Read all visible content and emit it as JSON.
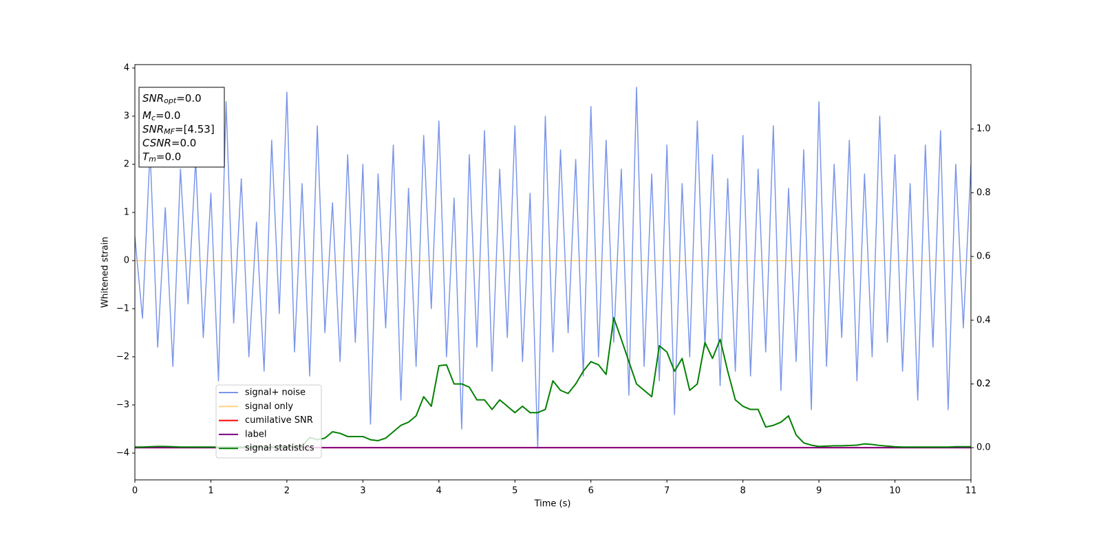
{
  "chart_data": {
    "type": "line",
    "xlabel": "Time (s)",
    "ylabel": "Whitened strain",
    "xlim": [
      0,
      11
    ],
    "xticks": [
      0,
      1,
      2,
      3,
      4,
      5,
      6,
      7,
      8,
      9,
      10,
      11
    ],
    "ylim": [
      -4.557,
      4.071
    ],
    "yticks": [
      {
        "value": -4,
        "label": "−4"
      },
      {
        "value": -3,
        "label": "−3"
      },
      {
        "value": -2,
        "label": "−2"
      },
      {
        "value": -1,
        "label": "−1"
      },
      0,
      1,
      2,
      3,
      4
    ],
    "y2lim": [
      -0.101,
      1.202
    ],
    "y2ticks": [
      {
        "value": 0,
        "label": "0.0"
      },
      0.2,
      0.4,
      0.6,
      0.8,
      {
        "value": 1,
        "label": "1.0"
      },
      0.2
    ],
    "x": [
      0,
      0.1,
      0.2,
      0.3,
      0.4,
      0.5,
      0.6,
      0.7,
      0.8,
      0.9,
      1,
      1.1,
      1.2,
      1.3,
      1.4,
      1.5,
      1.6,
      1.7,
      1.8,
      1.9,
      2,
      2.1,
      2.2,
      2.3,
      2.4,
      2.5,
      2.6,
      2.7,
      2.8,
      2.9,
      3,
      3.1,
      3.2,
      3.3,
      3.4,
      3.5,
      3.6,
      3.7,
      3.8,
      3.9,
      4,
      4.1,
      4.2,
      4.3,
      4.4,
      4.5,
      4.6,
      4.7,
      4.8,
      4.9,
      5,
      5.1,
      5.2,
      5.3,
      5.4,
      5.5,
      5.6,
      5.7,
      5.8,
      5.9,
      6,
      6.1,
      6.2,
      6.3,
      6.4,
      6.5,
      6.6,
      6.7,
      6.8,
      6.9,
      7,
      7.1,
      7.2,
      7.3,
      7.4,
      7.5,
      7.6,
      7.7,
      7.8,
      7.9,
      8,
      8.1,
      8.2,
      8.3,
      8.4,
      8.5,
      8.6,
      8.7,
      8.8,
      8.9,
      9,
      9.1,
      9.2,
      9.3,
      9.4,
      9.5,
      9.6,
      9.7,
      9.8,
      9.9,
      10,
      10.1,
      10.2,
      10.3,
      10.4,
      10.5,
      10.6,
      10.7,
      10.8,
      10.9,
      11
    ],
    "series": [
      {
        "name": "signal+ noise",
        "color": "#4169e1",
        "alpha": 0.7,
        "axis": "y",
        "values": [
          0.5,
          -1.2,
          2.3,
          -1.8,
          1.1,
          -2.2,
          1.9,
          -0.9,
          2.1,
          -1.6,
          1.4,
          -2.5,
          3.3,
          -1.3,
          1.7,
          -2.0,
          0.8,
          -2.3,
          2.5,
          -1.1,
          3.5,
          -1.9,
          1.6,
          -2.4,
          2.8,
          -1.5,
          1.2,
          -2.1,
          2.2,
          -1.7,
          2.0,
          -3.4,
          1.8,
          -1.4,
          2.4,
          -2.9,
          1.5,
          -2.2,
          2.6,
          -1.0,
          2.9,
          -2.0,
          1.3,
          -3.5,
          2.2,
          -1.8,
          2.7,
          -2.3,
          1.9,
          -1.6,
          2.8,
          -2.1,
          1.4,
          -3.9,
          3.0,
          -1.9,
          2.3,
          -1.5,
          2.1,
          -2.4,
          3.2,
          -2.0,
          2.5,
          -1.7,
          1.9,
          -2.8,
          3.6,
          -2.2,
          1.8,
          -2.5,
          2.4,
          -3.2,
          1.6,
          -2.0,
          2.9,
          -1.8,
          2.2,
          -2.6,
          1.7,
          -2.3,
          2.6,
          -2.4,
          1.9,
          -1.9,
          2.8,
          -2.7,
          1.5,
          -2.1,
          2.3,
          -3.1,
          3.3,
          -2.2,
          2.0,
          -1.6,
          2.5,
          -2.5,
          1.8,
          -2.0,
          3.0,
          -1.7,
          2.2,
          -2.3,
          1.6,
          -2.9,
          2.4,
          -1.8,
          2.7,
          -3.1,
          2.0,
          -1.4,
          2.0
        ]
      },
      {
        "name": "signal only",
        "color": "#ffa500",
        "alpha": 0.5,
        "axis": "y",
        "values": [
          0,
          0,
          0,
          0,
          0,
          0,
          0,
          0,
          0,
          0,
          0,
          0,
          0,
          0,
          0,
          0,
          0,
          0,
          0,
          0,
          0,
          0,
          0,
          0,
          0,
          0,
          0,
          0,
          0,
          0,
          0,
          0,
          0,
          0,
          0,
          0,
          0,
          0,
          0,
          0,
          0,
          0,
          0,
          0,
          0,
          0,
          0,
          0,
          0,
          0,
          0,
          0,
          0,
          0,
          0,
          0,
          0,
          0,
          0,
          0,
          0,
          0,
          0,
          0,
          0,
          0,
          0,
          0,
          0,
          0,
          0,
          0,
          0,
          0,
          0,
          0,
          0,
          0,
          0,
          0,
          0,
          0,
          0,
          0,
          0,
          0,
          0,
          0,
          0,
          0,
          0,
          0,
          0,
          0,
          0,
          0,
          0,
          0,
          0,
          0,
          0,
          0,
          0,
          0,
          0,
          0,
          0,
          0,
          0,
          0,
          0
        ]
      },
      {
        "name": "cumilative SNR",
        "color": "#ff0000",
        "alpha": 1,
        "axis": "y2",
        "values": [
          0,
          0,
          0,
          0,
          0,
          0,
          0,
          0,
          0,
          0,
          0,
          0,
          0,
          0,
          0,
          0,
          0,
          0,
          0,
          0,
          0,
          0,
          0,
          0,
          0,
          0,
          0,
          0,
          0,
          0,
          0,
          0,
          0,
          0,
          0,
          0,
          0,
          0,
          0,
          0,
          0,
          0,
          0,
          0,
          0,
          0,
          0,
          0,
          0,
          0,
          0,
          0,
          0,
          0,
          0,
          0,
          0,
          0,
          0,
          0,
          0,
          0,
          0,
          0,
          0,
          0,
          0,
          0,
          0,
          0,
          0,
          0,
          0,
          0,
          0,
          0,
          0,
          0,
          0,
          0,
          0,
          0,
          0,
          0,
          0,
          0,
          0,
          0,
          0,
          0,
          0,
          0,
          0,
          0,
          0,
          0,
          0,
          0,
          0,
          0,
          0,
          0,
          0,
          0,
          0,
          0,
          0,
          0,
          0,
          0,
          0
        ]
      },
      {
        "name": "label",
        "color": "#800080",
        "alpha": 1,
        "axis": "y2",
        "values": [
          0,
          0,
          0,
          0,
          0,
          0,
          0,
          0,
          0,
          0,
          0,
          0,
          0,
          0,
          0,
          0,
          0,
          0,
          0,
          0,
          0,
          0,
          0,
          0,
          0,
          0,
          0,
          0,
          0,
          0,
          0,
          0,
          0,
          0,
          0,
          0,
          0,
          0,
          0,
          0,
          0,
          0,
          0,
          0,
          0,
          0,
          0,
          0,
          0,
          0,
          0,
          0,
          0,
          0,
          0,
          0,
          0,
          0,
          0,
          0,
          0,
          0,
          0,
          0,
          0,
          0,
          0,
          0,
          0,
          0,
          0,
          0,
          0,
          0,
          0,
          0,
          0,
          0,
          0,
          0,
          0,
          0,
          0,
          0,
          0,
          0,
          0,
          0,
          0,
          0,
          0,
          0,
          0,
          0,
          0,
          0,
          0,
          0,
          0,
          0,
          0,
          0,
          0,
          0,
          0,
          0,
          0,
          0,
          0,
          0,
          0
        ]
      },
      {
        "name": "signal statistics",
        "color": "#008000",
        "alpha": 1,
        "axis": "y2",
        "values": [
          0.002,
          0.002,
          0.003,
          0.004,
          0.004,
          0.003,
          0.002,
          0.002,
          0.002,
          0.002,
          0.002,
          0.002,
          0.002,
          0.002,
          0.002,
          0.002,
          0.002,
          0.002,
          0.002,
          0.002,
          0.002,
          0.002,
          0.004,
          0.032,
          0.025,
          0.03,
          0.05,
          0.045,
          0.035,
          0.035,
          0.035,
          0.025,
          0.022,
          0.03,
          0.05,
          0.07,
          0.08,
          0.1,
          0.16,
          0.13,
          0.257,
          0.26,
          0.2,
          0.2,
          0.19,
          0.15,
          0.15,
          0.12,
          0.15,
          0.13,
          0.11,
          0.13,
          0.11,
          0.11,
          0.12,
          0.21,
          0.18,
          0.17,
          0.2,
          0.24,
          0.27,
          0.26,
          0.23,
          0.408,
          0.34,
          0.27,
          0.2,
          0.18,
          0.16,
          0.32,
          0.3,
          0.24,
          0.28,
          0.18,
          0.2,
          0.33,
          0.28,
          0.34,
          0.24,
          0.15,
          0.13,
          0.12,
          0.12,
          0.065,
          0.07,
          0.08,
          0.1,
          0.04,
          0.015,
          0.008,
          0.004,
          0.005,
          0.006,
          0.006,
          0.007,
          0.008,
          0.012,
          0.01,
          0.007,
          0.005,
          0.003,
          0.002,
          0.002,
          0.002,
          0.002,
          0.002,
          0.002,
          0.002,
          0.003,
          0.003,
          0.003
        ]
      }
    ],
    "annotation": {
      "lines": [
        {
          "var": "SNR",
          "sub": "opt",
          "text": "=0.0"
        },
        {
          "var": "M",
          "sub": "c",
          "text": "=0.0"
        },
        {
          "var": "SNR",
          "sub": "MF",
          "text": "=[4.53]"
        },
        {
          "var": "CSNR",
          "text": "=0.0"
        },
        {
          "var": "T",
          "sub": "m",
          "text": "=0.0"
        }
      ]
    },
    "legend": "lower left"
  }
}
